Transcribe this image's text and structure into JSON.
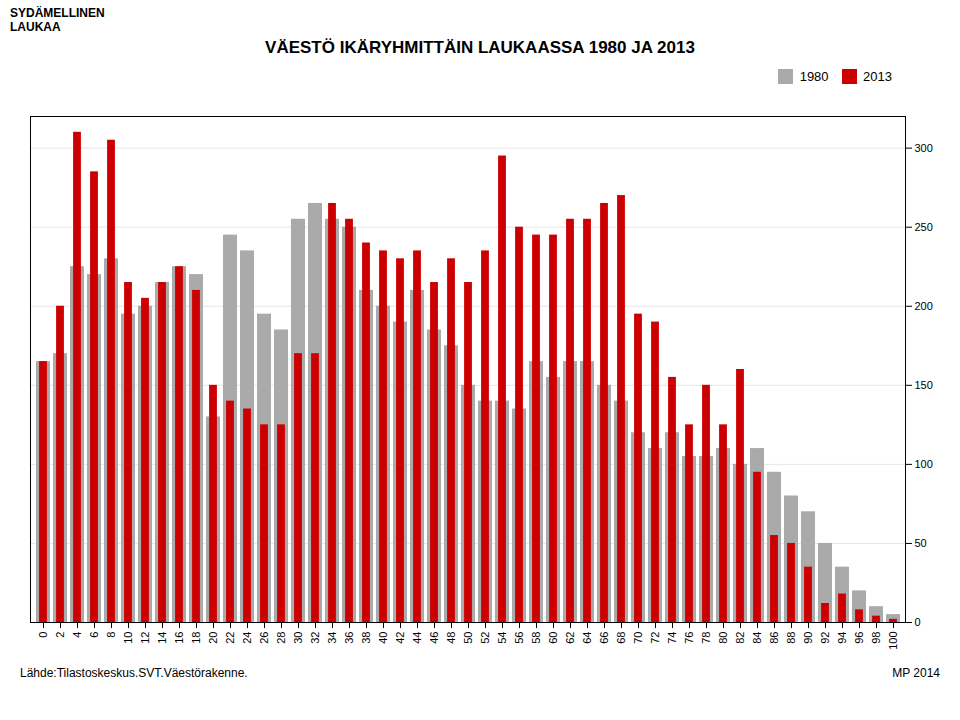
{
  "chart_data": {
    "type": "bar",
    "title": "VÄESTÖ IKÄRYHMITTÄIN LAUKAASSA 1980 JA 2013",
    "annotations": [
      "SYDÄMELLINEN\nLAUKAA",
      "Lähde:Tilastoskeskus.SVT.Väestörakenne.",
      "MP 2014"
    ],
    "categories": [
      0,
      2,
      4,
      6,
      8,
      10,
      12,
      14,
      16,
      18,
      20,
      22,
      24,
      26,
      28,
      30,
      32,
      34,
      36,
      38,
      40,
      42,
      44,
      46,
      48,
      50,
      52,
      54,
      56,
      58,
      60,
      62,
      64,
      66,
      68,
      70,
      72,
      74,
      76,
      78,
      80,
      82,
      84,
      86,
      88,
      90,
      92,
      94,
      96,
      98,
      100
    ],
    "series": [
      {
        "name": "1980",
        "color": "#aaaaaa",
        "values": [
          165,
          170,
          225,
          220,
          230,
          195,
          200,
          215,
          225,
          220,
          130,
          245,
          235,
          195,
          185,
          255,
          265,
          255,
          250,
          210,
          200,
          190,
          210,
          185,
          175,
          150,
          140,
          140,
          135,
          165,
          155,
          165,
          165,
          150,
          140,
          120,
          110,
          120,
          105,
          105,
          110,
          100,
          110,
          95,
          80,
          70,
          50,
          35,
          20,
          10,
          5
        ]
      },
      {
        "name": "2013",
        "color": "#cc0000",
        "values": [
          165,
          200,
          310,
          285,
          305,
          215,
          205,
          215,
          225,
          210,
          150,
          140,
          135,
          125,
          125,
          170,
          170,
          265,
          255,
          240,
          235,
          230,
          235,
          215,
          230,
          215,
          235,
          295,
          250,
          245,
          245,
          255,
          255,
          265,
          270,
          195,
          190,
          155,
          125,
          150,
          125,
          160,
          95,
          55,
          50,
          35,
          12,
          18,
          8,
          4,
          2
        ]
      }
    ],
    "ylim": [
      0,
      320
    ],
    "yticks": [
      0,
      50,
      100,
      150,
      200,
      250,
      300
    ],
    "grid": true,
    "legend": "upper right"
  }
}
